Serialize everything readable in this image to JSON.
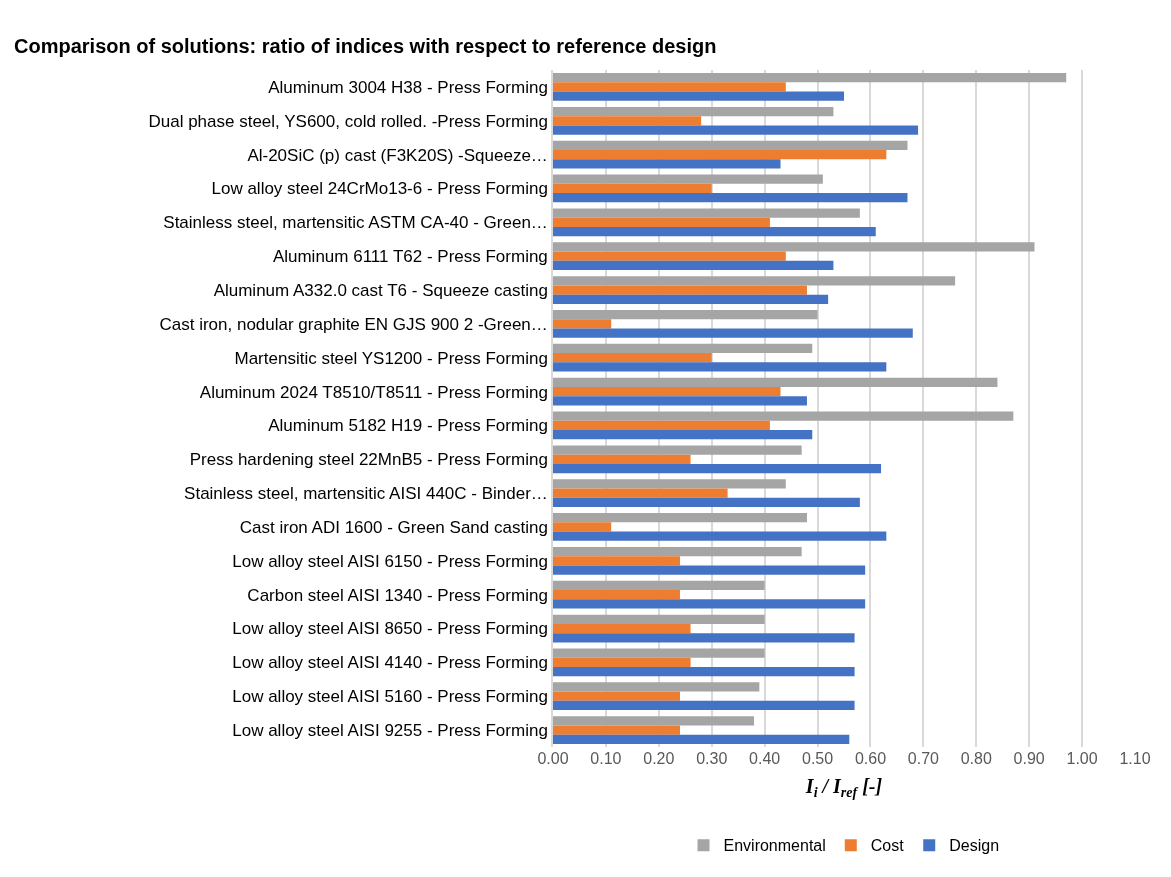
{
  "chart_data": {
    "type": "bar",
    "orientation": "horizontal",
    "title": "Comparison of solutions: ratio of indices with respect to reference design",
    "xlabel": "I$_{i}$ / I$_{ref}$ [-]",
    "categories": [
      "Aluminum 3004 H38 - Press Forming",
      "Dual phase steel, YS600, cold rolled. -Press Forming",
      "Al-20SiC (p) cast (F3K20S) -Squeeze…",
      "Low alloy steel 24CrMo13-6 - Press Forming",
      "Stainless steel, martensitic ASTM CA-40 - Green…",
      "Aluminum 6111 T62 - Press Forming",
      "Aluminum A332.0 cast T6 - Squeeze casting",
      "Cast iron, nodular graphite EN GJS 900 2 -Green…",
      "Martensitic steel YS1200 - Press Forming",
      "Aluminum 2024 T8510/T8511 - Press Forming",
      "Aluminum 5182 H19 - Press Forming",
      "Press hardening steel 22MnB5 - Press Forming",
      "Stainless steel, martensitic AISI 440C - Binder…",
      "Cast iron ADI 1600 - Green Sand casting",
      "Low alloy steel AISI 6150 - Press Forming",
      "Carbon steel AISI 1340 - Press Forming",
      "Low alloy steel AISI 8650 - Press Forming",
      "Low alloy steel AISI 4140 - Press Forming",
      "Low alloy steel AISI 5160 - Press Forming",
      "Low alloy steel AISI 9255 - Press Forming"
    ],
    "series": [
      {
        "name": "Environmental",
        "color": "#a5a5a5",
        "values": [
          0.97,
          0.53,
          0.67,
          0.51,
          0.58,
          0.91,
          0.76,
          0.5,
          0.49,
          0.84,
          0.87,
          0.47,
          0.44,
          0.48,
          0.47,
          0.4,
          0.4,
          0.4,
          0.39,
          0.38
        ]
      },
      {
        "name": "Cost",
        "color": "#ed7d31",
        "values": [
          0.44,
          0.28,
          0.63,
          0.3,
          0.41,
          0.44,
          0.48,
          0.11,
          0.3,
          0.43,
          0.41,
          0.26,
          0.33,
          0.11,
          0.24,
          0.24,
          0.26,
          0.26,
          0.24,
          0.24
        ]
      },
      {
        "name": "Design",
        "color": "#4472c4",
        "values": [
          0.55,
          0.69,
          0.43,
          0.67,
          0.61,
          0.53,
          0.52,
          0.68,
          0.63,
          0.48,
          0.49,
          0.62,
          0.58,
          0.63,
          0.59,
          0.59,
          0.57,
          0.57,
          0.57,
          0.56
        ]
      }
    ],
    "xlim": [
      0,
      1.1
    ],
    "xticks": [
      {
        "value": 0,
        "label": "0.00"
      },
      {
        "value": 0.1,
        "label": "0.10"
      },
      {
        "value": 0.2,
        "label": "0.20"
      },
      {
        "value": 0.3,
        "label": "0.30"
      },
      {
        "value": 0.4,
        "label": "0.40"
      },
      {
        "value": 0.5,
        "label": "0.50"
      },
      {
        "value": 0.6,
        "label": "0.60"
      },
      {
        "value": 0.7,
        "label": "0.70"
      },
      {
        "value": 0.8,
        "label": "0.80"
      },
      {
        "value": 0.9,
        "label": "0.90"
      },
      {
        "value": 1,
        "label": "1.00"
      },
      {
        "value": 1.1,
        "label": "1.10"
      }
    ],
    "grid": "x",
    "legend": "bottom"
  }
}
